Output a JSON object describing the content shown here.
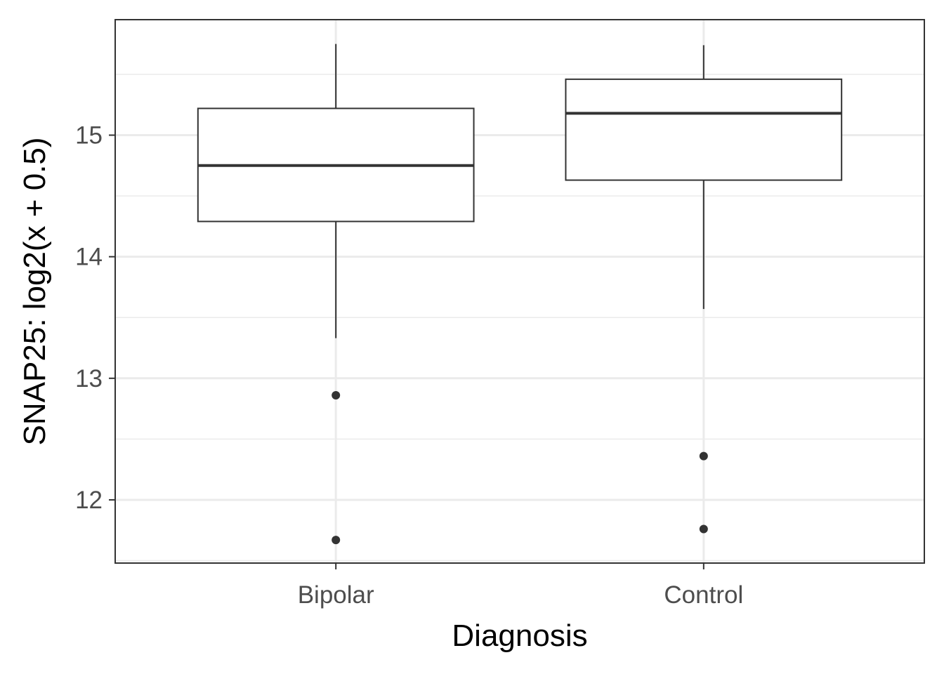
{
  "chart_data": {
    "type": "box",
    "title": "",
    "xlabel": "Diagnosis",
    "ylabel": "SNAP25: log2(x + 0.5)",
    "categories": [
      "Bipolar",
      "Control"
    ],
    "ylim": [
      11.48,
      15.95
    ],
    "yticks": [
      12,
      13,
      14,
      15
    ],
    "grid": true,
    "boxes": [
      {
        "category": "Bipolar",
        "whisker_low": 13.33,
        "q1": 14.29,
        "median": 14.75,
        "q3": 15.22,
        "whisker_high": 15.75,
        "outliers": [
          12.86,
          11.67
        ]
      },
      {
        "category": "Control",
        "whisker_low": 13.57,
        "q1": 14.63,
        "median": 15.18,
        "q3": 15.46,
        "whisker_high": 15.74,
        "outliers": [
          12.36,
          11.76
        ]
      }
    ]
  }
}
